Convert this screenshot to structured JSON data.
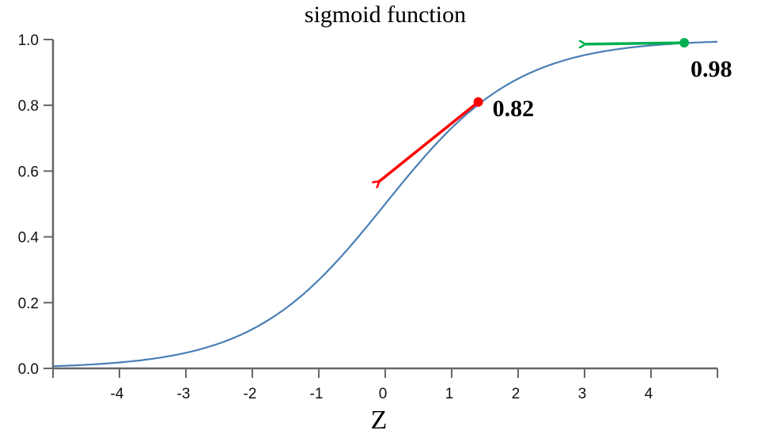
{
  "chart_data": {
    "type": "line",
    "title": "sigmoid function",
    "xlabel": "Z",
    "ylabel": "",
    "xlim": [
      -5,
      5
    ],
    "ylim": [
      0,
      1
    ],
    "grid": false,
    "x_ticks": [
      -4,
      -3,
      -2,
      -1,
      0,
      1,
      2,
      3,
      4
    ],
    "x_tick_labels": [
      "-4",
      "-3",
      "-2",
      "-1",
      "0",
      "1",
      "2",
      "3",
      "4"
    ],
    "y_ticks": [
      0,
      0.2,
      0.4,
      0.6,
      0.8,
      1.0
    ],
    "y_tick_labels": [
      "0.0",
      "0.2",
      "0.4",
      "0.6",
      "0.8",
      "1.0"
    ],
    "series": [
      {
        "function": "1/(1+exp(-z))",
        "x_range": [
          -5,
          5
        ],
        "color": "#4a7fb5"
      }
    ],
    "annotations": [
      {
        "label": "0.82",
        "x": 1.4,
        "y": 0.81,
        "arrow_to": {
          "x": -0.1,
          "y": 0.567
        },
        "color": "#ff0000"
      },
      {
        "label": "0.98",
        "x": 4.5,
        "y": 0.99,
        "arrow_to": {
          "x": 3.0,
          "y": 0.986
        },
        "color": "#00b050"
      }
    ]
  }
}
